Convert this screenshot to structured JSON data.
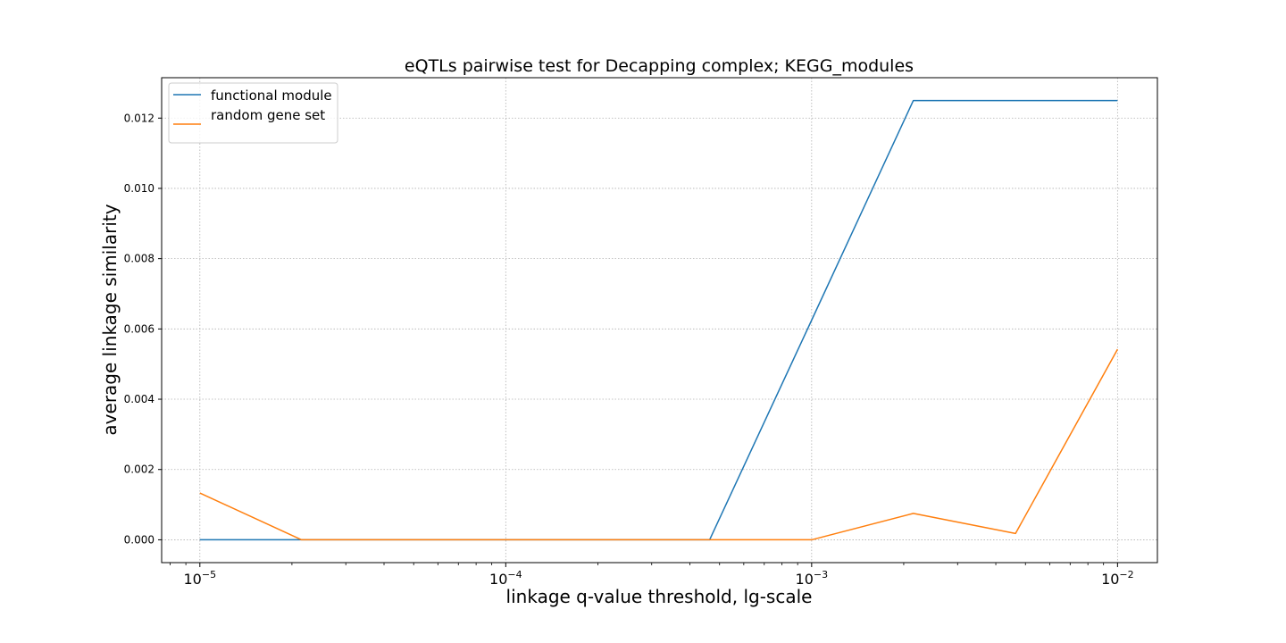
{
  "chart_data": {
    "type": "line",
    "title": "eQTLs pairwise test for Decapping complex; KEGG_modules",
    "xlabel": "linkage q-value threshold, lg-scale",
    "ylabel": "average linkage similarity",
    "x_scale": "log",
    "xlim": [
      7.5e-06,
      0.0135
    ],
    "ylim": [
      -0.00065,
      0.01315
    ],
    "x_ticks": [
      {
        "value": 1e-05,
        "base": "10",
        "exp": "−5"
      },
      {
        "value": 0.0001,
        "base": "10",
        "exp": "−4"
      },
      {
        "value": 0.001,
        "base": "10",
        "exp": "−3"
      },
      {
        "value": 0.01,
        "base": "10",
        "exp": "−2"
      }
    ],
    "y_ticks": [
      {
        "value": 0.0,
        "label": "0.000"
      },
      {
        "value": 0.002,
        "label": "0.002"
      },
      {
        "value": 0.004,
        "label": "0.004"
      },
      {
        "value": 0.006,
        "label": "0.006"
      },
      {
        "value": 0.008,
        "label": "0.008"
      },
      {
        "value": 0.01,
        "label": "0.010"
      },
      {
        "value": 0.012,
        "label": "0.012"
      }
    ],
    "grid": true,
    "legend_position": "upper left",
    "x": [
      1e-05,
      2.15e-05,
      4.64e-05,
      0.0001,
      0.000215,
      0.000464,
      0.001,
      0.00215,
      0.00464,
      0.01
    ],
    "series": [
      {
        "name": "functional module",
        "color": "#1f77b4",
        "values": [
          0.0,
          0.0,
          0.0,
          0.0,
          0.0,
          0.0,
          0.00625,
          0.0125,
          0.0125,
          0.0125
        ]
      },
      {
        "name": "random gene set",
        "color": "#ff7f0e",
        "values": [
          0.00133,
          0.0,
          0.0,
          0.0,
          0.0,
          0.0,
          0.0,
          0.00075,
          0.00018,
          0.00542
        ]
      }
    ]
  }
}
